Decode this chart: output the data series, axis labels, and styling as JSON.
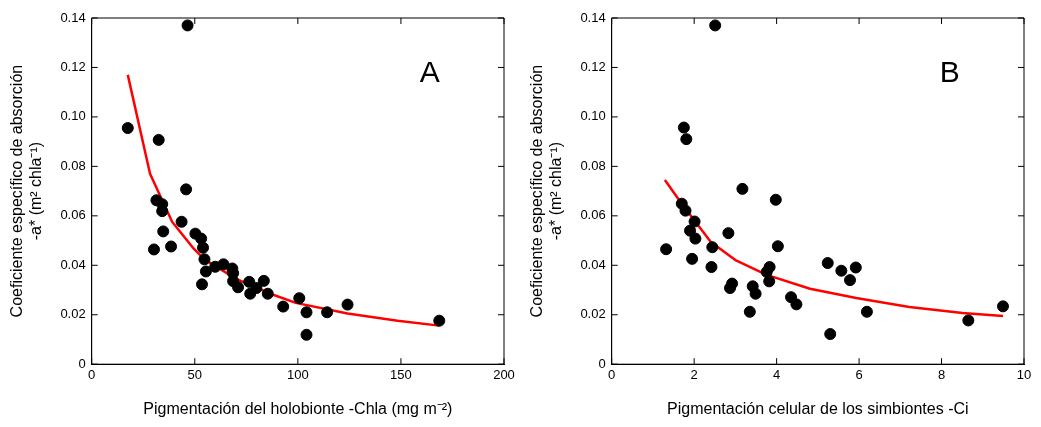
{
  "chart_data": [
    {
      "type": "scatter",
      "xlabel": "Pigmentación del holobionte -Chla (mg m⁻²)",
      "ylabel": "Coeficiente específico de absorción\n-a* (m² chla⁻¹)",
      "annotations": [
        "A"
      ],
      "xlim": [
        0,
        200
      ],
      "xticks": [
        0,
        50,
        100,
        150,
        200
      ],
      "ylim": [
        0,
        0.14
      ],
      "yticks": [
        0,
        0.02,
        0.04,
        0.06,
        0.08,
        {
          "value": 0.1,
          "label": "0.10"
        },
        0.12,
        0.14
      ],
      "grid": false,
      "legend": false,
      "series": [
        {
          "type": "scatter",
          "marker": "circle",
          "color": "#000000",
          "x": [
            46.5,
            17.5,
            32.5,
            45.8,
            31.4,
            34.2,
            34.2,
            43.6,
            34.7,
            30.2,
            38.5,
            50.3,
            53.1,
            54,
            54.7,
            55.4,
            53.5,
            59.9,
            63.9,
            68.2,
            68.6,
            68.6,
            71,
            76.4,
            79.9,
            76.9,
            83.5,
            85.4,
            92.9,
            100.7,
            104.2,
            104.2,
            114.2,
            124.1,
            168.6
          ],
          "values": [
            0.137,
            0.0955,
            0.0907,
            0.0707,
            0.0663,
            0.0647,
            0.0619,
            0.0576,
            0.0537,
            0.0464,
            0.0476,
            0.0528,
            0.0508,
            0.0471,
            0.0424,
            0.0375,
            0.0323,
            0.0394,
            0.0404,
            0.0387,
            0.0368,
            0.0336,
            0.0311,
            0.0333,
            0.0308,
            0.0285,
            0.0337,
            0.0285,
            0.0233,
            0.0267,
            0.021,
            0.0119,
            0.021,
            0.0241,
            0.0176
          ]
        },
        {
          "type": "line",
          "marker": "none",
          "color": "#ff0000",
          "x": [
            17.5,
            28.3,
            39,
            49.5,
            54.7,
            70.3,
            87.7,
            99,
            124.1,
            148.4,
            168.6
          ],
          "values": [
            0.117,
            0.077,
            0.0576,
            0.0467,
            0.0424,
            0.0344,
            0.0282,
            0.0248,
            0.0205,
            0.0176,
            0.0156
          ]
        }
      ]
    },
    {
      "type": "scatter",
      "xlabel": "Pigmentación celular de los simbiontes -Ci",
      "ylabel": "Coeficiente específico de absorción\n-a* (m² chla⁻¹)",
      "annotations": [
        "B"
      ],
      "xlim": [
        0,
        10
      ],
      "xticks": [
        0,
        2,
        4,
        6,
        8,
        10
      ],
      "ylim": [
        0,
        0.14
      ],
      "yticks": [
        0,
        0.02,
        0.04,
        0.06,
        0.08,
        {
          "value": 0.1,
          "label": "0.10"
        },
        0.12,
        0.14
      ],
      "grid": false,
      "legend": false,
      "series": [
        {
          "type": "scatter",
          "marker": "circle",
          "color": "#000000",
          "x": [
            2.51,
            1.75,
            1.81,
            3.17,
            3.98,
            1.7,
            1.79,
            2.01,
            1.9,
            2.03,
            2.83,
            1.32,
            2.44,
            4.03,
            1.95,
            2.42,
            3.83,
            3.76,
            3.82,
            2.92,
            2.87,
            3.42,
            3.49,
            4.35,
            4.48,
            3.35,
            5.24,
            5.57,
            5.92,
            5.78,
            6.19,
            5.3,
            8.65,
            9.49
          ],
          "values": [
            0.137,
            0.0957,
            0.091,
            0.0709,
            0.0665,
            0.0649,
            0.0621,
            0.0577,
            0.054,
            0.0508,
            0.053,
            0.0465,
            0.0473,
            0.0477,
            0.0426,
            0.0393,
            0.0393,
            0.0373,
            0.0335,
            0.0326,
            0.0308,
            0.0315,
            0.0285,
            0.0271,
            0.0242,
            0.0212,
            0.0409,
            0.0378,
            0.0391,
            0.034,
            0.0212,
            0.0122,
            0.0177,
            0.0234
          ]
        },
        {
          "type": "line",
          "marker": "none",
          "color": "#ff0000",
          "x": [
            1.29,
            1.72,
            2.4,
            3,
            3.78,
            4.81,
            5.93,
            7.22,
            8.51,
            9.49
          ],
          "values": [
            0.0745,
            0.0644,
            0.0495,
            0.0421,
            0.036,
            0.0305,
            0.0268,
            0.0231,
            0.0207,
            0.0195
          ]
        }
      ]
    }
  ]
}
